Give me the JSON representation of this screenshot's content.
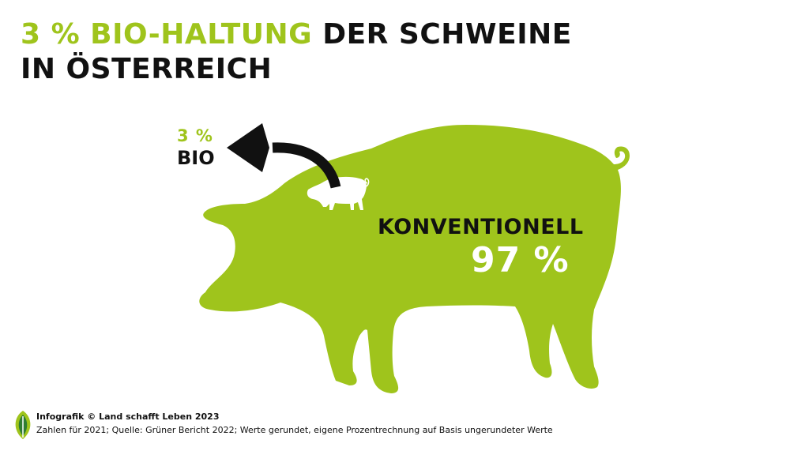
{
  "header": {
    "title_highlight": "3 % BIO-HALTUNG",
    "title_rest": " DER SCHWEINE",
    "title_line2": "IN ÖSTERREICH"
  },
  "chart_data": {
    "type": "pie",
    "slices": [
      {
        "label": "BIO",
        "value": 3,
        "value_label": "3 %",
        "color": "#ffffff"
      },
      {
        "label": "KONVENTIONELL",
        "value": 97,
        "value_label": "97 %",
        "color": "#9fc41c"
      }
    ]
  },
  "footer": {
    "credit": "Infografik © Land schafft Leben 2023",
    "note": "Zahlen für 2021; Quelle: Grüner Bericht 2022; Werte gerundet, eigene Prozentrechnung auf Basis ungerundeter Werte"
  },
  "colors": {
    "accent": "#9fc41c",
    "text": "#111111",
    "background": "#ffffff"
  },
  "icons": {
    "small_pig": "small-pig-icon",
    "arrow": "curved-arrow-icon",
    "leaf": "leaf-logo-icon"
  }
}
